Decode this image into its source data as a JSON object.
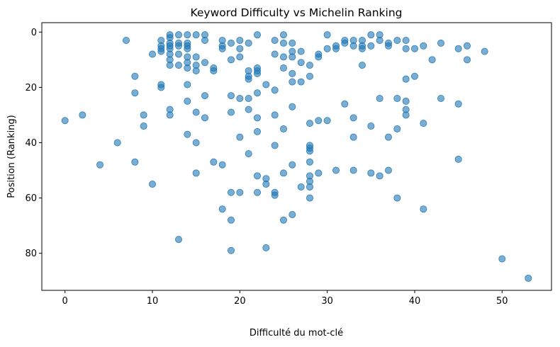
{
  "chart_data": {
    "type": "scatter",
    "title": "Keyword Difficulty vs Michelin Ranking",
    "xlabel": "Difficulté du mot-clé",
    "ylabel": "Position (Ranking)",
    "xlim": [
      -2.65,
      55.65
    ],
    "ylim": [
      93.4,
      -3.4
    ],
    "y_inverted": true,
    "xticks": [
      0,
      10,
      20,
      30,
      40,
      50
    ],
    "yticks": [
      0,
      20,
      40,
      60,
      80
    ],
    "grid": false,
    "legend": "none",
    "point_color": "#1f77b4",
    "point_alpha": 0.6,
    "series": [
      {
        "points": [
          [
            0,
            32
          ],
          [
            2,
            30
          ],
          [
            4,
            48
          ],
          [
            6,
            40
          ],
          [
            7,
            3
          ],
          [
            8,
            16
          ],
          [
            8,
            22
          ],
          [
            8,
            47
          ],
          [
            9,
            30
          ],
          [
            9,
            34
          ],
          [
            10,
            8
          ],
          [
            10,
            55
          ],
          [
            11,
            3
          ],
          [
            11,
            5
          ],
          [
            11,
            6
          ],
          [
            11,
            7
          ],
          [
            11,
            19
          ],
          [
            11,
            20
          ],
          [
            12,
            1
          ],
          [
            12,
            2
          ],
          [
            12,
            4
          ],
          [
            12,
            5
          ],
          [
            12,
            6
          ],
          [
            12,
            8
          ],
          [
            12,
            10
          ],
          [
            12,
            12
          ],
          [
            12,
            28
          ],
          [
            12,
            30
          ],
          [
            13,
            1
          ],
          [
            13,
            4
          ],
          [
            13,
            5
          ],
          [
            13,
            8
          ],
          [
            13,
            12
          ],
          [
            13,
            75
          ],
          [
            14,
            1
          ],
          [
            14,
            4
          ],
          [
            14,
            5
          ],
          [
            14,
            6
          ],
          [
            14,
            9
          ],
          [
            14,
            11
          ],
          [
            14,
            13
          ],
          [
            14,
            19
          ],
          [
            14,
            25
          ],
          [
            14,
            37
          ],
          [
            15,
            1
          ],
          [
            15,
            9
          ],
          [
            15,
            12
          ],
          [
            15,
            14
          ],
          [
            15,
            29
          ],
          [
            15,
            40
          ],
          [
            15,
            51
          ],
          [
            16,
            1
          ],
          [
            16,
            3
          ],
          [
            16,
            11
          ],
          [
            16,
            23
          ],
          [
            16,
            31
          ],
          [
            17,
            13
          ],
          [
            17,
            14
          ],
          [
            17,
            47
          ],
          [
            18,
            3
          ],
          [
            18,
            5
          ],
          [
            18,
            6
          ],
          [
            18,
            48
          ],
          [
            18,
            64
          ],
          [
            19,
            4
          ],
          [
            19,
            10
          ],
          [
            19,
            23
          ],
          [
            19,
            29
          ],
          [
            19,
            58
          ],
          [
            19,
            68
          ],
          [
            19,
            79
          ],
          [
            20,
            3
          ],
          [
            20,
            6
          ],
          [
            20,
            9
          ],
          [
            20,
            24
          ],
          [
            20,
            38
          ],
          [
            20,
            58
          ],
          [
            21,
            4
          ],
          [
            21,
            14
          ],
          [
            21,
            16
          ],
          [
            21,
            17
          ],
          [
            21,
            24
          ],
          [
            21,
            28
          ],
          [
            21,
            44
          ],
          [
            22,
            1
          ],
          [
            22,
            13
          ],
          [
            22,
            14
          ],
          [
            22,
            15
          ],
          [
            22,
            22
          ],
          [
            22,
            31
          ],
          [
            22,
            36
          ],
          [
            22,
            52
          ],
          [
            22,
            58
          ],
          [
            23,
            19
          ],
          [
            23,
            53
          ],
          [
            23,
            55
          ],
          [
            23,
            78
          ],
          [
            24,
            3
          ],
          [
            24,
            8
          ],
          [
            24,
            21
          ],
          [
            24,
            30
          ],
          [
            24,
            41
          ],
          [
            24,
            58
          ],
          [
            24,
            59
          ],
          [
            25,
            1
          ],
          [
            25,
            4
          ],
          [
            25,
            9
          ],
          [
            25,
            13
          ],
          [
            25,
            35
          ],
          [
            25,
            51
          ],
          [
            25,
            68
          ],
          [
            26,
            4
          ],
          [
            26,
            7
          ],
          [
            26,
            9
          ],
          [
            26,
            15
          ],
          [
            26,
            18
          ],
          [
            26,
            27
          ],
          [
            26,
            48
          ],
          [
            26,
            66
          ],
          [
            27,
            7
          ],
          [
            27,
            11
          ],
          [
            27,
            18
          ],
          [
            27,
            56
          ],
          [
            28,
            12
          ],
          [
            28,
            16
          ],
          [
            28,
            33
          ],
          [
            28,
            41
          ],
          [
            28,
            42
          ],
          [
            28,
            43
          ],
          [
            28,
            47
          ],
          [
            28,
            52
          ],
          [
            28,
            54
          ],
          [
            28,
            56
          ],
          [
            28,
            60
          ],
          [
            29,
            8
          ],
          [
            29,
            9
          ],
          [
            29,
            32
          ],
          [
            29,
            51
          ],
          [
            30,
            1
          ],
          [
            30,
            6
          ],
          [
            30,
            32
          ],
          [
            31,
            5
          ],
          [
            31,
            6
          ],
          [
            31,
            50
          ],
          [
            32,
            3
          ],
          [
            32,
            4
          ],
          [
            32,
            26
          ],
          [
            33,
            3
          ],
          [
            33,
            5
          ],
          [
            33,
            31
          ],
          [
            33,
            38
          ],
          [
            33,
            50
          ],
          [
            34,
            3
          ],
          [
            34,
            5
          ],
          [
            34,
            6
          ],
          [
            34,
            12
          ],
          [
            35,
            1
          ],
          [
            35,
            5
          ],
          [
            35,
            34
          ],
          [
            35,
            51
          ],
          [
            36,
            1
          ],
          [
            36,
            3
          ],
          [
            36,
            24
          ],
          [
            36,
            52
          ],
          [
            37,
            4
          ],
          [
            37,
            5
          ],
          [
            37,
            38
          ],
          [
            37,
            50
          ],
          [
            38,
            3
          ],
          [
            38,
            24
          ],
          [
            38,
            35
          ],
          [
            38,
            60
          ],
          [
            39,
            3
          ],
          [
            39,
            6
          ],
          [
            39,
            17
          ],
          [
            39,
            25
          ],
          [
            39,
            28
          ],
          [
            39,
            30
          ],
          [
            40,
            6
          ],
          [
            40,
            16
          ],
          [
            41,
            5
          ],
          [
            41,
            33
          ],
          [
            41,
            64
          ],
          [
            42,
            10
          ],
          [
            43,
            4
          ],
          [
            43,
            24
          ],
          [
            45,
            6
          ],
          [
            45,
            26
          ],
          [
            45,
            46
          ],
          [
            46,
            5
          ],
          [
            46,
            10
          ],
          [
            48,
            7
          ],
          [
            50,
            82
          ],
          [
            53,
            89
          ]
        ]
      }
    ]
  }
}
